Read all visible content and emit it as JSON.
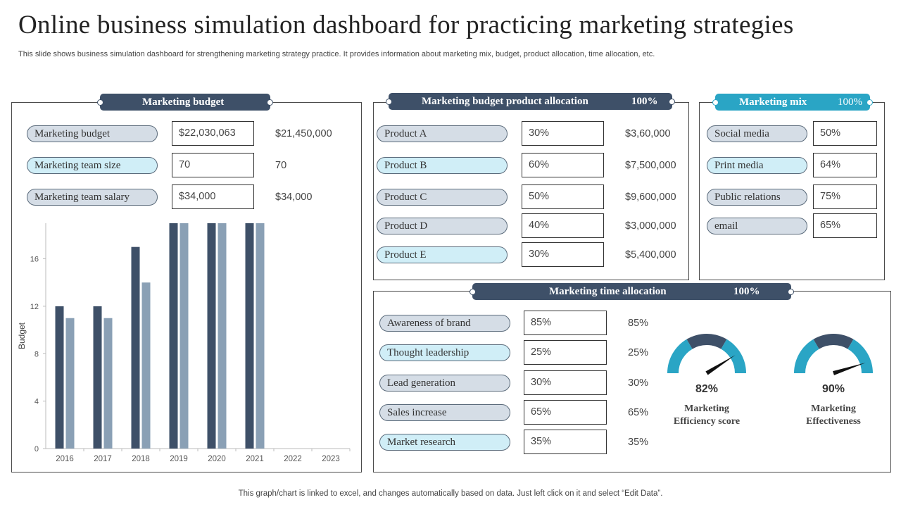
{
  "title": "Online business simulation dashboard for practicing marketing strategies",
  "subtitle": "This slide shows business simulation dashboard for strengthening marketing strategy practice. It provides information about marketing mix, budget, product allocation, time allocation, etc.",
  "footer": "This graph/chart is linked to excel,  and changes automatically based on data. Just left click on it and select “Edit Data”.",
  "budget_panel": {
    "header": "Marketing budget",
    "rows": [
      {
        "label": "Marketing  budget",
        "value": "$22,030,063",
        "extra": "$21,450,000"
      },
      {
        "label": "Marketing  team size",
        "value": "70",
        "extra": "70"
      },
      {
        "label": "Marketing  team salary",
        "value": "$34,000",
        "extra": "$34,000"
      }
    ]
  },
  "product_panel": {
    "header": "Marketing budget product  allocation",
    "header_pct": "100%",
    "rows": [
      {
        "label": "Product A",
        "value": "30%",
        "extra": "$3,60,000"
      },
      {
        "label": "Product B",
        "value": "60%",
        "extra": "$7,500,000"
      },
      {
        "label": "Product C",
        "value": "50%",
        "extra": "$9,600,000"
      },
      {
        "label": "Product D",
        "value": "40%",
        "extra": "$3,000,000"
      },
      {
        "label": "Product E",
        "value": "30%",
        "extra": "$5,400,000"
      }
    ]
  },
  "mix_panel": {
    "header": "Marketing mix",
    "header_pct": "100%",
    "rows": [
      {
        "label": "Social media",
        "value": "50%"
      },
      {
        "label": "Print media",
        "value": "64%"
      },
      {
        "label": "Public  relations",
        "value": "75%"
      },
      {
        "label": "email",
        "value": "65%"
      }
    ]
  },
  "time_panel": {
    "header": "Marketing time allocation",
    "header_pct": "100%",
    "rows": [
      {
        "label": "Awareness  of brand",
        "value": "85%",
        "extra": "85%"
      },
      {
        "label": "Thought  leadership",
        "value": "25%",
        "extra": "25%"
      },
      {
        "label": "Lead generation",
        "value": "30%",
        "extra": "30%"
      },
      {
        "label": "Sales increase",
        "value": "65%",
        "extra": "65%"
      },
      {
        "label": "Market research",
        "value": "35%",
        "extra": "35%"
      }
    ],
    "gauges": [
      {
        "value": 82,
        "pct_label": "82%",
        "label_line1": "Marketing",
        "label_line2": "Efficiency score"
      },
      {
        "value": 90,
        "pct_label": "90%",
        "label_line1": "Marketing",
        "label_line2": "Effectiveness"
      }
    ]
  },
  "colors": {
    "dark": "#3e5068",
    "light": "#8aa0b5",
    "teal": "#2aa5c5"
  },
  "chart_data": {
    "type": "bar",
    "categories": [
      "2016",
      "2017",
      "2018",
      "2019",
      "2020",
      "2021",
      "2022",
      "2023"
    ],
    "series": [
      {
        "values": [
          12,
          12,
          17,
          19,
          19,
          19,
          null,
          null
        ]
      },
      {
        "values": [
          11,
          11,
          14,
          19,
          19,
          19,
          null,
          null
        ]
      }
    ],
    "ylabel": "Budget",
    "yticks": [
      0,
      4,
      8,
      12,
      16
    ],
    "ylim": [
      0,
      19
    ],
    "grid": false
  }
}
